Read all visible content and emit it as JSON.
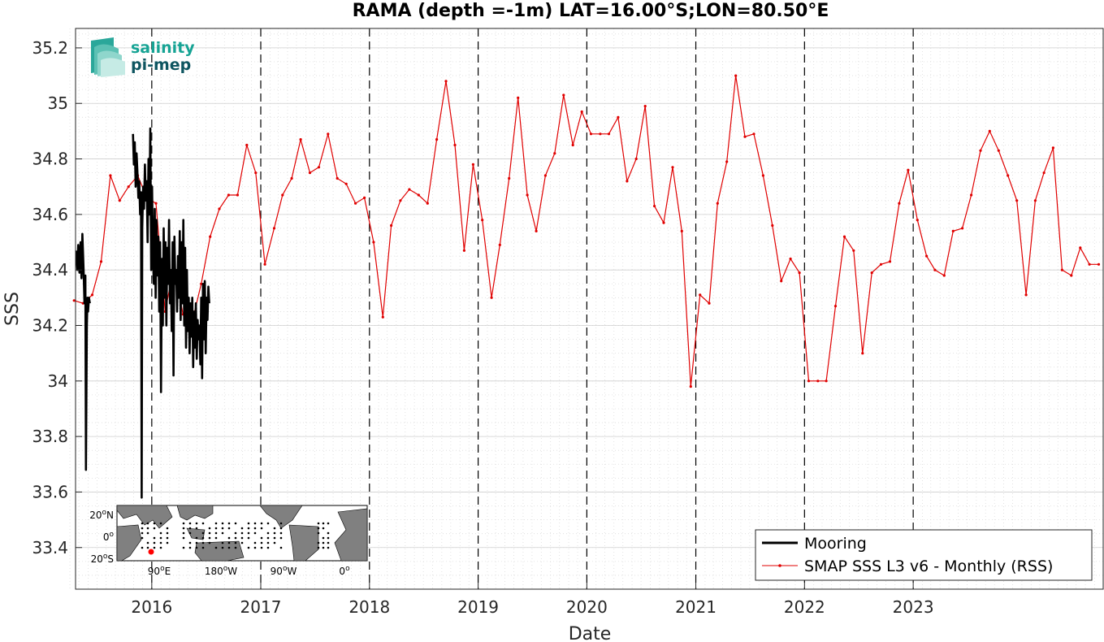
{
  "chart_data": {
    "type": "line",
    "title": "RAMA (depth =-1m) LAT=16.00°S;LON=80.50°E",
    "xlabel": "Date",
    "ylabel": "SSS",
    "xlim": [
      "2015-04-20",
      "2024-09-30"
    ],
    "ylim": [
      33.25,
      35.27
    ],
    "x_ticks": [
      "2016",
      "2017",
      "2018",
      "2019",
      "2020",
      "2021",
      "2022",
      "2023"
    ],
    "y_ticks": [
      "33.4",
      "33.6",
      "33.8",
      "34",
      "34.2",
      "34.4",
      "34.6",
      "34.8",
      "35",
      "35.2"
    ],
    "grid": true,
    "year_boundaries_dashed": true,
    "legend_position": "bottom-right",
    "series": [
      {
        "name": "Mooring",
        "color": "#000000",
        "x": [
          "2015-04-22",
          "2015-04-26",
          "2015-04-29",
          "2015-05-03",
          "2015-05-07",
          "2015-05-10",
          "2015-05-13",
          "2015-05-17",
          "2015-05-20",
          "2015-05-23",
          "2015-05-25",
          "2015-05-28",
          "2015-05-30",
          "2015-06-01",
          "2015-06-04",
          "2015-06-07",
          "2015-10-30",
          "2015-11-02",
          "2015-11-05",
          "2015-11-08",
          "2015-11-11",
          "2015-11-14",
          "2015-11-17",
          "2015-11-20",
          "2015-11-23",
          "2015-11-26",
          "2015-11-28",
          "2015-11-30",
          "2015-12-03",
          "2015-12-06",
          "2015-12-09",
          "2015-12-12",
          "2015-12-15",
          "2015-12-18",
          "2015-12-21",
          "2015-12-24",
          "2015-12-27",
          "2015-12-30",
          "2016-01-02",
          "2016-01-05",
          "2016-01-08",
          "2016-01-11",
          "2016-01-14",
          "2016-01-17",
          "2016-01-20",
          "2016-01-23",
          "2016-01-26",
          "2016-01-29",
          "2016-02-01",
          "2016-02-04",
          "2016-02-07",
          "2016-02-10",
          "2016-02-13",
          "2016-02-16",
          "2016-02-19",
          "2016-02-22",
          "2016-02-25",
          "2016-02-28",
          "2016-03-02",
          "2016-03-05",
          "2016-03-08",
          "2016-03-11",
          "2016-03-14",
          "2016-03-17",
          "2016-03-20",
          "2016-03-23",
          "2016-03-26",
          "2016-03-29",
          "2016-04-01",
          "2016-04-04",
          "2016-04-07",
          "2016-04-10",
          "2016-04-13",
          "2016-04-16",
          "2016-04-19",
          "2016-04-22",
          "2016-04-25",
          "2016-04-28",
          "2016-05-01",
          "2016-05-04",
          "2016-05-07",
          "2016-05-10",
          "2016-05-13",
          "2016-05-16",
          "2016-05-19",
          "2016-05-22",
          "2016-05-25",
          "2016-05-28",
          "2016-05-31",
          "2016-06-03",
          "2016-06-06",
          "2016-06-09",
          "2016-06-12",
          "2016-06-15",
          "2016-06-18",
          "2016-06-21",
          "2016-06-24",
          "2016-06-27",
          "2016-06-30",
          "2016-07-03",
          "2016-07-06",
          "2016-07-09",
          "2016-07-12"
        ],
        "values": [
          34.47,
          34.4,
          34.49,
          34.39,
          34.5,
          34.37,
          34.53,
          34.4,
          34.28,
          34.38,
          33.68,
          34.2,
          34.3,
          34.25,
          34.3,
          34.28,
          34.89,
          34.78,
          34.86,
          34.7,
          34.82,
          34.75,
          34.66,
          34.72,
          34.6,
          34.68,
          33.58,
          34.55,
          34.7,
          34.62,
          34.78,
          34.65,
          34.72,
          34.5,
          34.8,
          34.6,
          34.91,
          34.4,
          34.7,
          34.45,
          34.35,
          34.62,
          34.3,
          34.58,
          34.38,
          34.52,
          34.25,
          34.5,
          33.96,
          34.44,
          34.2,
          34.55,
          34.3,
          34.5,
          34.2,
          34.48,
          34.35,
          34.58,
          34.28,
          34.4,
          34.18,
          34.5,
          34.02,
          34.52,
          34.35,
          34.4,
          34.25,
          34.45,
          34.3,
          34.54,
          34.22,
          34.5,
          34.28,
          34.58,
          34.2,
          34.48,
          34.12,
          34.4,
          34.18,
          34.3,
          34.1,
          34.28,
          34.16,
          34.3,
          34.05,
          34.25,
          34.12,
          34.28,
          34.08,
          34.22,
          34.15,
          34.2,
          34.06,
          34.3,
          34.01,
          34.35,
          34.15,
          34.36,
          34.1,
          34.3,
          34.22,
          34.34,
          34.28
        ]
      },
      {
        "name": "SMAP SSS L3 v6 - Monthly (RSS)",
        "color": "#e00000",
        "x": [
          "2015-04-15",
          "2015-05-15",
          "2015-06-15",
          "2015-07-15",
          "2015-08-15",
          "2015-09-15",
          "2015-10-15",
          "2015-11-15",
          "2015-12-15",
          "2016-01-15",
          "2016-02-15",
          "2016-03-15",
          "2016-04-15",
          "2016-05-15",
          "2016-06-15",
          "2016-07-15",
          "2016-08-15",
          "2016-09-15",
          "2016-10-15",
          "2016-11-15",
          "2016-12-15",
          "2017-01-15",
          "2017-02-15",
          "2017-03-15",
          "2017-04-15",
          "2017-05-15",
          "2017-06-15",
          "2017-07-15",
          "2017-08-15",
          "2017-09-15",
          "2017-10-15",
          "2017-11-15",
          "2017-12-15",
          "2018-01-15",
          "2018-02-15",
          "2018-03-15",
          "2018-04-15",
          "2018-05-15",
          "2018-06-15",
          "2018-07-15",
          "2018-08-15",
          "2018-09-15",
          "2018-10-15",
          "2018-11-15",
          "2018-12-15",
          "2019-01-15",
          "2019-02-15",
          "2019-03-15",
          "2019-04-15",
          "2019-05-15",
          "2019-06-15",
          "2019-07-15",
          "2019-08-15",
          "2019-09-15",
          "2019-10-15",
          "2019-11-15",
          "2019-12-15",
          "2020-01-15",
          "2020-02-15",
          "2020-03-15",
          "2020-04-15",
          "2020-05-15",
          "2020-06-15",
          "2020-07-15",
          "2020-08-15",
          "2020-09-15",
          "2020-10-15",
          "2020-11-15",
          "2020-12-15",
          "2021-01-15",
          "2021-02-15",
          "2021-03-15",
          "2021-04-15",
          "2021-05-15",
          "2021-06-15",
          "2021-07-15",
          "2021-08-15",
          "2021-09-15",
          "2021-10-15",
          "2021-11-15",
          "2021-12-15",
          "2022-01-15",
          "2022-02-15",
          "2022-03-15",
          "2022-04-15",
          "2022-05-15",
          "2022-06-15",
          "2022-07-15",
          "2022-08-15",
          "2022-09-15",
          "2022-10-15",
          "2022-11-15",
          "2022-12-15",
          "2023-01-15",
          "2023-02-15",
          "2023-03-15",
          "2023-04-15",
          "2023-05-15",
          "2023-06-15",
          "2023-07-15",
          "2023-08-15",
          "2023-09-15",
          "2023-10-15",
          "2023-11-15",
          "2023-12-15",
          "2024-01-15",
          "2024-02-15",
          "2024-03-15",
          "2024-04-15",
          "2024-05-15",
          "2024-06-15",
          "2024-07-15",
          "2024-08-15",
          "2024-09-15"
        ],
        "values": [
          34.29,
          34.28,
          34.31,
          34.43,
          34.74,
          34.65,
          34.7,
          34.74,
          34.66,
          34.64,
          34.25,
          34.41,
          34.24,
          34.21,
          34.35,
          34.52,
          34.62,
          34.67,
          34.67,
          34.85,
          34.75,
          34.42,
          34.55,
          34.67,
          34.73,
          34.87,
          34.75,
          34.77,
          34.89,
          34.73,
          34.71,
          34.64,
          34.66,
          34.5,
          34.23,
          34.56,
          34.65,
          34.69,
          34.67,
          34.64,
          34.87,
          35.08,
          34.85,
          34.47,
          34.78,
          34.58,
          34.3,
          34.49,
          34.73,
          35.02,
          34.67,
          34.54,
          34.74,
          34.82,
          35.03,
          34.85,
          34.97,
          34.89,
          34.89,
          34.89,
          34.95,
          34.72,
          34.8,
          34.99,
          34.63,
          34.57,
          34.77,
          34.54,
          33.98,
          34.31,
          34.28,
          34.64,
          34.79,
          35.1,
          34.88,
          34.89,
          34.74,
          34.56,
          34.36,
          34.44,
          34.39,
          34.0,
          34.0,
          34.0,
          34.27,
          34.52,
          34.47,
          34.1,
          34.39,
          34.42,
          34.43,
          34.64,
          34.76,
          34.58,
          34.45,
          34.4,
          34.38,
          34.54,
          34.55,
          34.67,
          34.83,
          34.9,
          34.83,
          34.74,
          34.65,
          34.31,
          34.65,
          34.75,
          34.84,
          34.4,
          34.38,
          34.48,
          34.42,
          34.42
        ]
      }
    ]
  },
  "logo": {
    "line1": "salinity",
    "line2": "pi-mep"
  },
  "inset_map": {
    "lat_labels": [
      {
        "deg": "20",
        "sup": "o",
        "hemi": "N"
      },
      {
        "deg": "0",
        "sup": "o",
        "hemi": ""
      },
      {
        "deg": "20",
        "sup": "o",
        "hemi": "S"
      }
    ],
    "lon_labels": [
      {
        "deg": "90",
        "sup": "o",
        "hemi": "E"
      },
      {
        "deg": "180",
        "sup": "o",
        "hemi": "W"
      },
      {
        "deg": "90",
        "sup": "o",
        "hemi": "W"
      },
      {
        "deg": "0",
        "sup": "o",
        "hemi": ""
      }
    ],
    "ocean_color": "#ffffff",
    "land_color": "#808080",
    "station_color": "#ff0000"
  }
}
